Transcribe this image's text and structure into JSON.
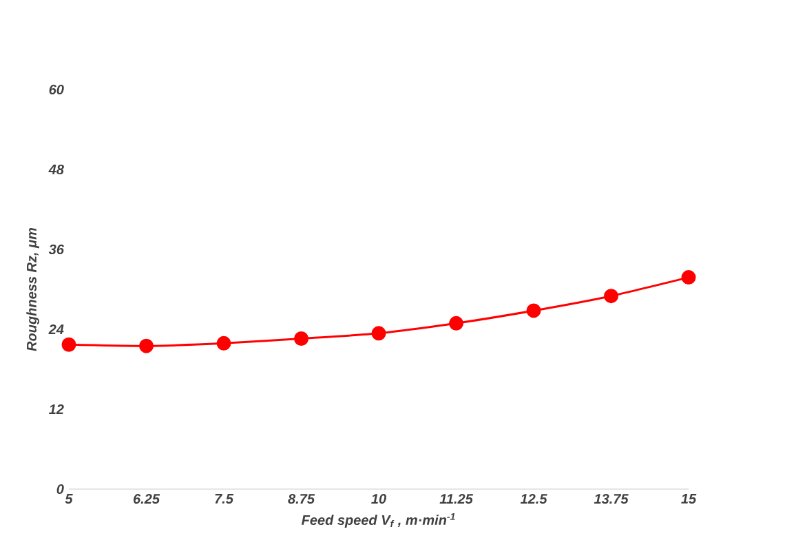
{
  "chart_data": {
    "type": "line",
    "xlabel": "Feed speed V$_{f}$ , m·min$^{-1}$",
    "ylabel": "Roughness Rz, μm",
    "x": [
      5,
      6.25,
      7.5,
      8.75,
      10,
      11.25,
      12.5,
      13.75,
      15
    ],
    "series": [
      {
        "color": "#ff0000",
        "values": [
          21.7,
          21.5,
          21.9,
          22.6,
          23.4,
          24.9,
          26.8,
          29.0,
          31.8
        ]
      }
    ],
    "xlim": [
      5,
      15
    ],
    "xticks": [
      5,
      6.25,
      7.5,
      8.75,
      10,
      11.25,
      12.5,
      13.75,
      15
    ],
    "ylim": [
      0,
      60
    ],
    "yticks": [
      0,
      12,
      24,
      36,
      48,
      60
    ],
    "marker": "circle",
    "line_style": "solid",
    "grid": false
  }
}
